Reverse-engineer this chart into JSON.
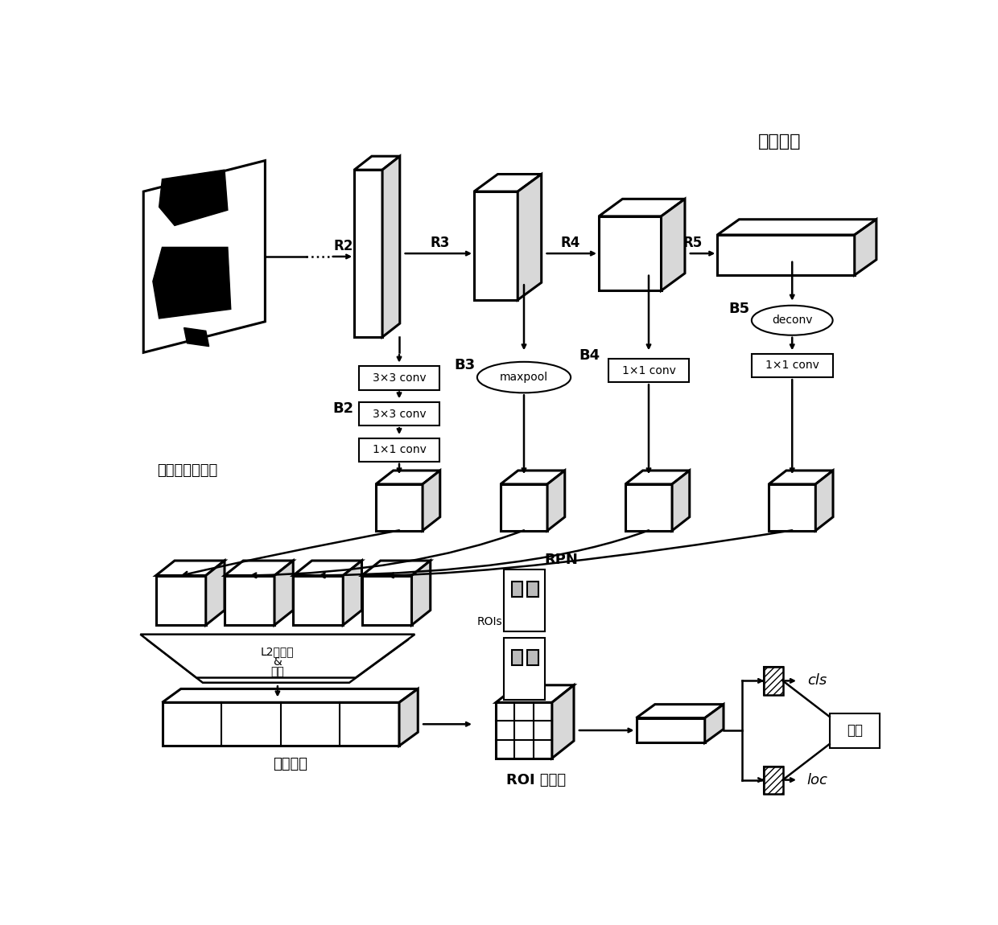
{
  "bg_color": "#ffffff",
  "label_jizun": "基准网络",
  "label_duotezheng": "多特征融合网络",
  "label_duoji": "多级特征",
  "label_roi": "ROI 池化层",
  "label_rpn": "RPN",
  "label_rois": "ROIs",
  "label_cls": "cls",
  "label_loc": "loc",
  "label_shuchu": "输出",
  "label_l2_line1": "L2标准化",
  "label_l2_line2": "&",
  "label_l2_line3": "融合",
  "label_B2": "B2",
  "label_B3": "B3",
  "label_B4": "B4",
  "label_B5": "B5",
  "label_R2": "R2",
  "label_R3": "R3",
  "label_R4": "R4",
  "label_R5": "R5",
  "label_33conv": "3×3 conv",
  "label_33conv2": "3×3 conv",
  "label_11conv_b2": "1×1 conv",
  "label_maxpool": "maxpool",
  "label_11conv_b4": "1×1 conv",
  "label_deconv": "deconv",
  "label_11conv_b5": "1×1 conv"
}
